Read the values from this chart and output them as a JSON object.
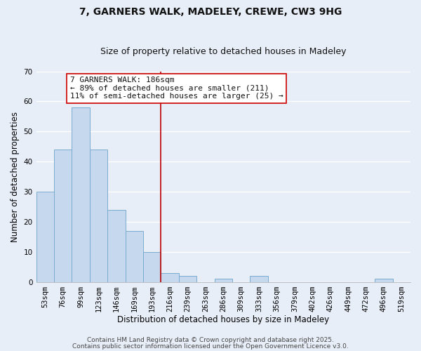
{
  "title": "7, GARNERS WALK, MADELEY, CREWE, CW3 9HG",
  "subtitle": "Size of property relative to detached houses in Madeley",
  "xlabel": "Distribution of detached houses by size in Madeley",
  "ylabel": "Number of detached properties",
  "bar_labels": [
    "53sqm",
    "76sqm",
    "99sqm",
    "123sqm",
    "146sqm",
    "169sqm",
    "193sqm",
    "216sqm",
    "239sqm",
    "263sqm",
    "286sqm",
    "309sqm",
    "333sqm",
    "356sqm",
    "379sqm",
    "402sqm",
    "426sqm",
    "449sqm",
    "472sqm",
    "496sqm",
    "519sqm"
  ],
  "bar_values": [
    30,
    44,
    58,
    44,
    24,
    17,
    10,
    3,
    2,
    0,
    1,
    0,
    2,
    0,
    0,
    0,
    0,
    0,
    0,
    1,
    0
  ],
  "bar_color": "#c5d8ee",
  "bar_edge_color": "#7aabcf",
  "vline_x_index": 6.5,
  "vline_color": "#bb0000",
  "annotation_line1": "7 GARNERS WALK: 186sqm",
  "annotation_line2": "← 89% of detached houses are smaller (211)",
  "annotation_line3": "11% of semi-detached houses are larger (25) →",
  "ylim": [
    0,
    70
  ],
  "yticks": [
    0,
    10,
    20,
    30,
    40,
    50,
    60,
    70
  ],
  "footer_line1": "Contains HM Land Registry data © Crown copyright and database right 2025.",
  "footer_line2": "Contains public sector information licensed under the Open Government Licence v3.0.",
  "background_color": "#e8eef8",
  "plot_bg_color": "#e8eef8",
  "grid_color": "#ffffff",
  "title_fontsize": 10,
  "subtitle_fontsize": 9,
  "axis_label_fontsize": 8.5,
  "tick_fontsize": 7.5,
  "annotation_fontsize": 8,
  "footer_fontsize": 6.5
}
